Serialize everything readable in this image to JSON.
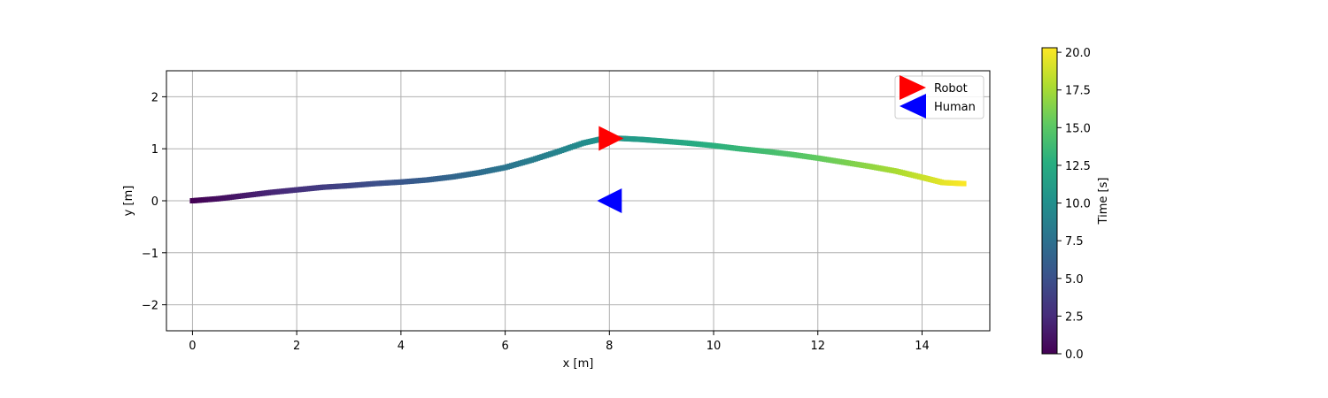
{
  "chart_data": {
    "type": "scatter",
    "xlabel": "x [m]",
    "ylabel": "y [m]",
    "xlim": [
      -0.5,
      15.3
    ],
    "ylim": [
      -2.5,
      2.5
    ],
    "xticks": [
      0,
      2,
      4,
      6,
      8,
      10,
      12,
      14
    ],
    "yticks": [
      -2,
      -1,
      0,
      1,
      2
    ],
    "xtick_labels": [
      "0",
      "2",
      "4",
      "6",
      "8",
      "10",
      "12",
      "14"
    ],
    "ytick_labels": [
      "−2",
      "−1",
      "0",
      "1",
      "2"
    ],
    "grid": true,
    "trajectory": {
      "colormap": "viridis",
      "x": [
        0.0,
        0.5,
        1.0,
        1.5,
        2.0,
        2.5,
        3.0,
        3.5,
        4.0,
        4.5,
        5.0,
        5.5,
        6.0,
        6.5,
        7.0,
        7.5,
        7.9,
        8.2,
        8.6,
        9.0,
        9.5,
        10.0,
        10.5,
        11.0,
        11.5,
        12.0,
        12.5,
        13.0,
        13.5,
        14.0,
        14.4,
        14.8
      ],
      "y": [
        0.0,
        0.04,
        0.1,
        0.16,
        0.21,
        0.26,
        0.29,
        0.33,
        0.36,
        0.4,
        0.46,
        0.54,
        0.64,
        0.78,
        0.94,
        1.11,
        1.2,
        1.2,
        1.18,
        1.15,
        1.11,
        1.06,
        1.0,
        0.95,
        0.89,
        0.82,
        0.74,
        0.66,
        0.57,
        0.45,
        0.35,
        0.33
      ],
      "t": [
        0.0,
        0.7,
        1.4,
        2.1,
        2.8,
        3.5,
        4.2,
        4.8,
        5.4,
        6.0,
        6.6,
        7.2,
        7.8,
        8.4,
        9.0,
        9.7,
        10.3,
        10.6,
        11.1,
        11.6,
        12.2,
        12.8,
        13.4,
        14.0,
        14.6,
        15.3,
        16.0,
        16.8,
        17.6,
        18.6,
        19.5,
        20.2
      ]
    },
    "markers": [
      {
        "name": "Robot",
        "x": 8.0,
        "y": 1.2,
        "direction": "right",
        "color": "#ff0000"
      },
      {
        "name": "Human",
        "x": 8.0,
        "y": 0.0,
        "direction": "left",
        "color": "#0000ff"
      }
    ],
    "legend": {
      "position": "top-right",
      "entries": [
        "Robot",
        "Human"
      ]
    },
    "colorbar": {
      "label": "Time [s]",
      "range": [
        0.0,
        20.3
      ],
      "ticks": [
        0.0,
        2.5,
        5.0,
        7.5,
        10.0,
        12.5,
        15.0,
        17.5,
        20.0
      ],
      "tick_labels": [
        "0.0",
        "2.5",
        "5.0",
        "7.5",
        "10.0",
        "12.5",
        "15.0",
        "17.5",
        "20.0"
      ]
    }
  }
}
